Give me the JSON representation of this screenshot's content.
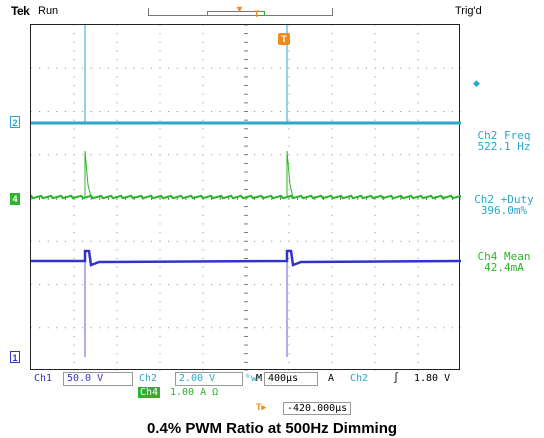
{
  "header": {
    "brand": "Tek",
    "run_state": "Run",
    "trigger_state": "Trig'd",
    "trigger_marker": "T"
  },
  "channels": {
    "ch2_marker": "2",
    "ch4_marker": "4",
    "ch1_marker": "1",
    "ch4_offscreen_marker": "4"
  },
  "measurements": [
    {
      "label": "Ch2 Freq",
      "value": "522.1 Hz"
    },
    {
      "label": "Ch2 +Duty",
      "value": "396.0m%"
    },
    {
      "label": "Ch4 Mean",
      "value": "42.4mA"
    }
  ],
  "status": {
    "ch1_label": "Ch1",
    "ch1_scale": "50.0 V",
    "ch2_label": "Ch2",
    "ch2_scale": "2.00 V",
    "bw_icon": "ᵇw",
    "M_label": "M",
    "timebase": "400µs",
    "A_label": "A",
    "trig_source": "Ch2",
    "trig_slope": "∫",
    "trig_level": "1.80 V",
    "ch4_label": "Ch4",
    "ch4_scale": "1.00 A Ω"
  },
  "offset": {
    "marker": "T▸",
    "value": "-420.000µs"
  },
  "caption": "0.4% PWM Ratio at 500Hz Dimming",
  "colors": {
    "ch1": "#3333cc",
    "ch2": "#2aa7c9",
    "ch4": "#2cb52c",
    "trigger": "#f08a1c"
  }
}
